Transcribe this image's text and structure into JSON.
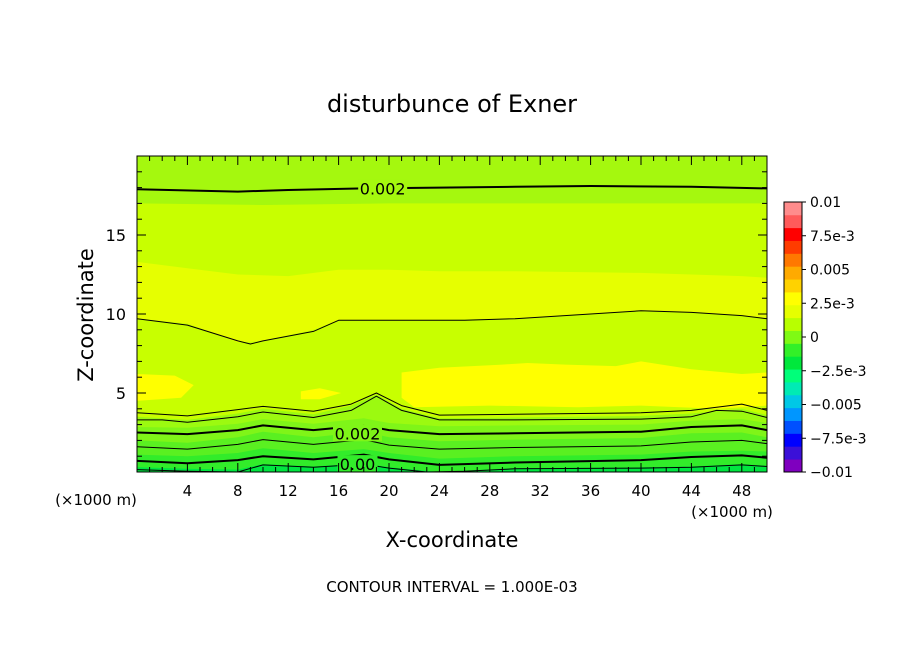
{
  "chart_data": {
    "type": "heatmap",
    "title": "disturbunce of Exner",
    "xlabel": "X-coordinate",
    "ylabel": "Z-coordinate",
    "x_unit": "(×1000 m)",
    "z_unit": "(×1000 m)",
    "xlim": [
      0,
      50
    ],
    "ylim": [
      0,
      20
    ],
    "x_ticks": [
      4,
      8,
      12,
      16,
      20,
      24,
      28,
      32,
      36,
      40,
      44,
      48
    ],
    "y_ticks": [
      5,
      10,
      15
    ],
    "footer": "CONTOUR INTERVAL = 1.000E-03",
    "colorbar": {
      "levels": [
        -0.01,
        -0.0075,
        -0.005,
        -0.0025,
        0,
        0.0025,
        0.005,
        0.0075,
        0.01
      ],
      "labels": [
        "0.01",
        "7.5e-3",
        "0.005",
        "2.5e-3",
        "0",
        "−2.5e-3",
        "−0.005",
        "−7.5e-3",
        "−0.01"
      ],
      "colors": [
        "#7f00bf",
        "#3b10d8",
        "#0000ff",
        "#0050ff",
        "#0096ff",
        "#00c8e6",
        "#00ebb4",
        "#00ff7a",
        "#00e83c",
        "#32f028",
        "#7ffa14",
        "#b8ff00",
        "#e6ff00",
        "#ffff00",
        "#ffd200",
        "#ffaa00",
        "#ff7800",
        "#ff3c00",
        "#ff0000",
        "#ff5a5a",
        "#ff8c8c"
      ]
    },
    "contour_labels": [
      {
        "text": "0.002",
        "x": 19.5,
        "z": 17.95
      },
      {
        "text": "0.002",
        "x": 17.5,
        "z": 2.45
      },
      {
        "text": "0.00",
        "x": 17.5,
        "z": 0.5
      }
    ],
    "fill_bands": [
      {
        "color": "#00e640",
        "z_lower_edge": [
          [
            0,
            0
          ],
          [
            50,
            0
          ]
        ]
      },
      {
        "color": "#32ec2a",
        "z_lower_edge": [
          [
            0,
            0.3
          ],
          [
            4,
            0.2
          ],
          [
            8,
            0.15
          ],
          [
            10,
            0.5
          ],
          [
            14,
            0.35
          ],
          [
            18,
            0.55
          ],
          [
            20,
            0.3
          ],
          [
            24,
            0.0
          ],
          [
            30,
            0.25
          ],
          [
            40,
            0.3
          ],
          [
            44,
            0.35
          ],
          [
            48,
            0.5
          ],
          [
            50,
            0.4
          ]
        ]
      },
      {
        "color": "#5af021",
        "z_lower_edge": [
          [
            0,
            1.1
          ],
          [
            4,
            1.0
          ],
          [
            8,
            1.2
          ],
          [
            10,
            1.5
          ],
          [
            14,
            1.2
          ],
          [
            18,
            1.45
          ],
          [
            20,
            1.2
          ],
          [
            24,
            0.85
          ],
          [
            30,
            1.0
          ],
          [
            40,
            1.1
          ],
          [
            44,
            1.3
          ],
          [
            48,
            1.35
          ],
          [
            50,
            1.3
          ]
        ]
      },
      {
        "color": "#7ff518",
        "z_lower_edge": [
          [
            0,
            2.0
          ],
          [
            4,
            1.85
          ],
          [
            8,
            2.2
          ],
          [
            10,
            2.55
          ],
          [
            14,
            2.2
          ],
          [
            18,
            2.55
          ],
          [
            20,
            2.2
          ],
          [
            24,
            1.95
          ],
          [
            30,
            2.05
          ],
          [
            40,
            2.15
          ],
          [
            44,
            2.45
          ],
          [
            48,
            2.5
          ],
          [
            50,
            2.2
          ]
        ]
      },
      {
        "color": "#9cfa10",
        "z_lower_edge": [
          [
            0,
            2.85
          ],
          [
            4,
            2.8
          ],
          [
            8,
            3.05
          ],
          [
            10,
            3.35
          ],
          [
            14,
            3.05
          ],
          [
            18,
            3.4
          ],
          [
            20,
            3.1
          ],
          [
            24,
            2.9
          ],
          [
            30,
            2.95
          ],
          [
            40,
            3.0
          ],
          [
            44,
            3.25
          ],
          [
            48,
            3.35
          ],
          [
            50,
            3.1
          ]
        ]
      },
      {
        "color": "#c8ff00",
        "z_lower_edge": [
          [
            0,
            3.5
          ],
          [
            4,
            3.3
          ],
          [
            8,
            3.7
          ],
          [
            10,
            4.0
          ],
          [
            14,
            3.65
          ],
          [
            17,
            4.2
          ],
          [
            19,
            4.9
          ],
          [
            21,
            4.0
          ],
          [
            24,
            3.4
          ],
          [
            30,
            3.45
          ],
          [
            40,
            3.55
          ],
          [
            44,
            3.7
          ],
          [
            48,
            4.0
          ],
          [
            50,
            3.6
          ]
        ]
      },
      {
        "color": "#e6ff00",
        "z_lower_edge": [
          [
            0,
            9.7
          ],
          [
            4,
            9.4
          ],
          [
            8,
            8.2
          ],
          [
            10,
            8.3
          ],
          [
            14,
            9.0
          ],
          [
            16,
            9.6
          ],
          [
            20,
            9.6
          ],
          [
            30,
            9.7
          ],
          [
            40,
            10.2
          ],
          [
            44,
            10.1
          ],
          [
            48,
            9.9
          ],
          [
            50,
            9.7
          ]
        ]
      },
      {
        "color": "#c8ff00",
        "z_lower_edge": [
          [
            0,
            13.3
          ],
          [
            4,
            12.9
          ],
          [
            8,
            12.5
          ],
          [
            12,
            12.4
          ],
          [
            16,
            12.8
          ],
          [
            20,
            12.8
          ],
          [
            24,
            12.7
          ],
          [
            30,
            12.7
          ],
          [
            40,
            12.6
          ],
          [
            48,
            12.4
          ],
          [
            50,
            12.3
          ]
        ]
      },
      {
        "color": "#a5f80e",
        "z_lower_edge": [
          [
            0,
            17.0
          ],
          [
            10,
            16.9
          ],
          [
            20,
            17.0
          ],
          [
            30,
            17.0
          ],
          [
            40,
            17.0
          ],
          [
            50,
            17.0
          ]
        ]
      }
    ],
    "yellow_patches": [
      {
        "color": "#ffff00",
        "points": [
          [
            0,
            6.2
          ],
          [
            3,
            6.1
          ],
          [
            4.5,
            5.5
          ],
          [
            3.5,
            4.7
          ],
          [
            0,
            4.5
          ]
        ]
      },
      {
        "color": "#ffff00",
        "points": [
          [
            13,
            5.1
          ],
          [
            14.5,
            5.3
          ],
          [
            16.2,
            5.0
          ],
          [
            14.5,
            4.6
          ],
          [
            13,
            4.6
          ]
        ]
      },
      {
        "color": "#ffff00",
        "points": [
          [
            21,
            6.3
          ],
          [
            24,
            6.6
          ],
          [
            29,
            6.8
          ],
          [
            31,
            6.9
          ],
          [
            34,
            6.8
          ],
          [
            38,
            6.7
          ],
          [
            40,
            7.0
          ],
          [
            44,
            6.5
          ],
          [
            48,
            6.2
          ],
          [
            50,
            6.3
          ],
          [
            50,
            4.2
          ],
          [
            46,
            4.0
          ],
          [
            40,
            4.2
          ],
          [
            35,
            4.1
          ],
          [
            28,
            4.2
          ],
          [
            22,
            4.1
          ],
          [
            21,
            4.7
          ]
        ]
      }
    ],
    "contour_lines": [
      {
        "width": 1.0,
        "points": [
          [
            0,
            0.15
          ],
          [
            4,
            0.05
          ],
          [
            8,
            0.0
          ],
          [
            10,
            0.45
          ],
          [
            14,
            0.3
          ],
          [
            18,
            0.5
          ],
          [
            20,
            0.25
          ],
          [
            23,
            0.0
          ],
          [
            26,
            0.05
          ],
          [
            30,
            0.2
          ],
          [
            40,
            0.25
          ],
          [
            44,
            0.3
          ],
          [
            48,
            0.45
          ],
          [
            50,
            0.35
          ]
        ]
      },
      {
        "width": 2.0,
        "points": [
          [
            0,
            0.7
          ],
          [
            4,
            0.55
          ],
          [
            8,
            0.75
          ],
          [
            10,
            1.0
          ],
          [
            14,
            0.8
          ],
          [
            18,
            1.1
          ],
          [
            20,
            0.8
          ],
          [
            24,
            0.45
          ],
          [
            30,
            0.6
          ],
          [
            40,
            0.75
          ],
          [
            44,
            0.95
          ],
          [
            48,
            1.05
          ],
          [
            50,
            0.9
          ]
        ]
      },
      {
        "width": 1.0,
        "points": [
          [
            0,
            1.6
          ],
          [
            4,
            1.45
          ],
          [
            8,
            1.75
          ],
          [
            10,
            2.05
          ],
          [
            14,
            1.75
          ],
          [
            18,
            2.05
          ],
          [
            20,
            1.7
          ],
          [
            24,
            1.45
          ],
          [
            30,
            1.55
          ],
          [
            40,
            1.65
          ],
          [
            44,
            1.9
          ],
          [
            48,
            2.0
          ],
          [
            50,
            1.8
          ]
        ]
      },
      {
        "width": 2.0,
        "points": [
          [
            0,
            2.5
          ],
          [
            4,
            2.4
          ],
          [
            8,
            2.65
          ],
          [
            10,
            2.95
          ],
          [
            14,
            2.65
          ],
          [
            18,
            2.95
          ],
          [
            20,
            2.65
          ],
          [
            24,
            2.4
          ],
          [
            30,
            2.45
          ],
          [
            40,
            2.55
          ],
          [
            44,
            2.85
          ],
          [
            48,
            2.95
          ],
          [
            50,
            2.65
          ]
        ]
      },
      {
        "width": 1.0,
        "points": [
          [
            0,
            3.3
          ],
          [
            2,
            3.3
          ],
          [
            4,
            3.15
          ],
          [
            8,
            3.5
          ],
          [
            10,
            3.8
          ],
          [
            14,
            3.45
          ],
          [
            17,
            3.9
          ],
          [
            19,
            4.8
          ],
          [
            21,
            3.9
          ],
          [
            24,
            3.3
          ],
          [
            30,
            3.3
          ],
          [
            40,
            3.35
          ],
          [
            44,
            3.5
          ],
          [
            46,
            3.9
          ],
          [
            48,
            3.85
          ],
          [
            50,
            3.45
          ]
        ]
      },
      {
        "width": 1.0,
        "points": [
          [
            0,
            3.75
          ],
          [
            4,
            3.55
          ],
          [
            8,
            3.95
          ],
          [
            10,
            4.15
          ],
          [
            14,
            3.85
          ],
          [
            17,
            4.3
          ],
          [
            19,
            5.0
          ],
          [
            21,
            4.2
          ],
          [
            24,
            3.6
          ],
          [
            30,
            3.65
          ],
          [
            40,
            3.75
          ],
          [
            44,
            3.9
          ],
          [
            48,
            4.3
          ],
          [
            50,
            3.9
          ]
        ]
      },
      {
        "width": 1.0,
        "points": [
          [
            0,
            9.7
          ],
          [
            4,
            9.3
          ],
          [
            8,
            8.3
          ],
          [
            9,
            8.1
          ],
          [
            10,
            8.3
          ],
          [
            12,
            8.6
          ],
          [
            14,
            8.9
          ],
          [
            16,
            9.6
          ],
          [
            20,
            9.6
          ],
          [
            26,
            9.6
          ],
          [
            30,
            9.7
          ],
          [
            36,
            10.0
          ],
          [
            40,
            10.2
          ],
          [
            44,
            10.1
          ],
          [
            48,
            9.9
          ],
          [
            50,
            9.7
          ]
        ]
      },
      {
        "width": 2.0,
        "points": [
          [
            0,
            17.9
          ],
          [
            8,
            17.75
          ],
          [
            12,
            17.85
          ],
          [
            18,
            17.95
          ],
          [
            24,
            18.0
          ],
          [
            30,
            18.05
          ],
          [
            36,
            18.1
          ],
          [
            44,
            18.05
          ],
          [
            50,
            17.95
          ]
        ]
      }
    ]
  }
}
